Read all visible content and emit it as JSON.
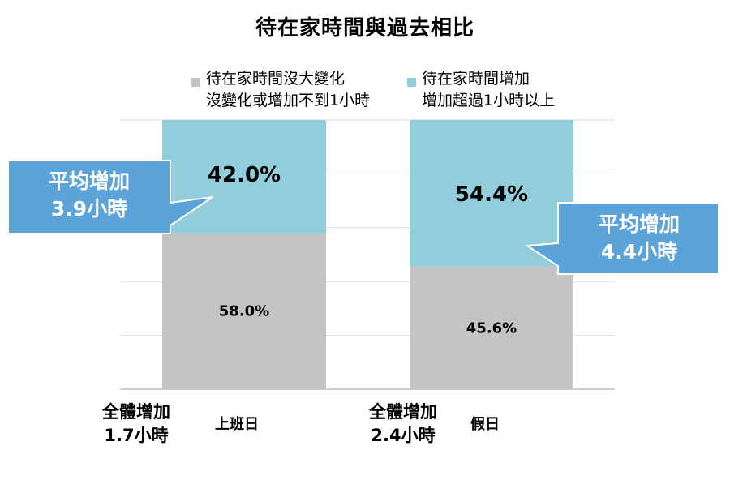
{
  "chart_data": {
    "type": "bar",
    "stacked": true,
    "title": "待在家時間與過去相比",
    "categories": [
      "上班日",
      "假日"
    ],
    "series": [
      {
        "name": "待在家時間沒大變化 沒變化或增加不到1小時",
        "legend_lines": [
          "待在家時間沒大變化",
          "沒變化或增加不到1小時"
        ],
        "color": "#c4c4c4",
        "values": [
          58.0,
          45.6
        ],
        "value_labels": [
          "58.0%",
          "45.6%"
        ]
      },
      {
        "name": "待在家時間增加 增加超過1小時以上",
        "legend_lines": [
          "待在家時間增加",
          "增加超過1小時以上"
        ],
        "color": "#92cddc",
        "values": [
          42.0,
          54.4
        ],
        "value_labels": [
          "42.0%",
          "54.4%"
        ]
      }
    ],
    "ylim": [
      0,
      100
    ],
    "grid": true,
    "legend_position": "top",
    "category_totals": [
      {
        "line1": "全體增加",
        "line2": "1.7小時"
      },
      {
        "line1": "全體增加",
        "line2": "2.4小時"
      }
    ],
    "callouts": [
      {
        "line1": "平均增加",
        "line2": "3.9小時",
        "color": "#5ba3d8"
      },
      {
        "line1": "平均增加",
        "line2": "4.4小時",
        "color": "#5ba3d8"
      }
    ]
  }
}
